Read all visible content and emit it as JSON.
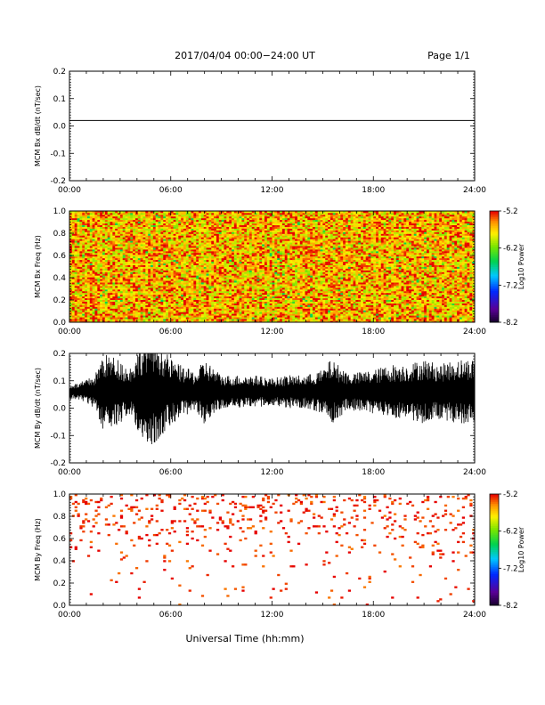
{
  "header": {
    "title": "2017/04/04  00:00−24:00 UT",
    "page": "Page 1/1"
  },
  "footer": {
    "xlabel": "Universal Time (hh:mm)"
  },
  "chart_data": [
    {
      "type": "line",
      "ylabel": "MCM Bx dB/dt (nT/sec)",
      "xlim": [
        0,
        24
      ],
      "ylim": [
        -0.2,
        0.2
      ],
      "x_ticks": [
        "00:00",
        "06:00",
        "12:00",
        "18:00",
        "24:00"
      ],
      "y_ticks": [
        "-0.2",
        "-0.1",
        "0.0",
        "0.1",
        "0.2"
      ],
      "series": [
        {
          "x": [
            0,
            24
          ],
          "y": [
            0.02,
            0.02
          ]
        }
      ]
    },
    {
      "type": "heatmap",
      "ylabel": "MCM Bx Freq (Hz)",
      "xlim": [
        0,
        24
      ],
      "ylim": [
        0,
        1
      ],
      "x_ticks": [
        "00:00",
        "06:00",
        "12:00",
        "18:00",
        "24:00"
      ],
      "y_ticks": [
        "0.0",
        "0.2",
        "0.4",
        "0.6",
        "0.8",
        "1.0"
      ],
      "colorbar": {
        "label": "Log10 Power",
        "ticks": [
          "-8.2",
          "-7.2",
          "-6.2",
          "-5.2"
        ],
        "range": [
          -8.2,
          -5.2
        ]
      },
      "fill": "dense",
      "typical_value": -5.6,
      "density": 1.0
    },
    {
      "type": "line",
      "ylabel": "MCM By dB/dt (nT/sec)",
      "xlim": [
        0,
        24
      ],
      "ylim": [
        -0.2,
        0.2
      ],
      "x_ticks": [
        "00:00",
        "06:00",
        "12:00",
        "18:00",
        "24:00"
      ],
      "y_ticks": [
        "-0.2",
        "-0.1",
        "0.0",
        "0.1",
        "0.2"
      ],
      "series": [
        {
          "baseline": 0.06,
          "envelope_x": [
            0,
            0.5,
            1.5,
            2.0,
            3.0,
            3.5,
            4.5,
            5.0,
            6.0,
            6.5,
            7.5,
            8.0,
            9.0,
            10.0,
            11.0,
            12.0,
            13.0,
            14.0,
            15.0,
            15.5,
            16.5,
            17.0,
            18.0,
            19.0,
            20.0,
            21.0,
            22.0,
            23.0,
            24.0
          ],
          "envelope_amp": [
            0.03,
            0.03,
            0.06,
            0.14,
            0.12,
            0.08,
            0.2,
            0.2,
            0.12,
            0.1,
            0.07,
            0.12,
            0.06,
            0.06,
            0.06,
            0.05,
            0.06,
            0.06,
            0.08,
            0.12,
            0.07,
            0.07,
            0.08,
            0.1,
            0.1,
            0.12,
            0.1,
            0.12,
            0.12
          ]
        }
      ]
    },
    {
      "type": "heatmap",
      "ylabel": "MCM By Freq (Hz)",
      "xlim": [
        0,
        24
      ],
      "ylim": [
        0,
        1
      ],
      "x_ticks": [
        "00:00",
        "06:00",
        "12:00",
        "18:00",
        "24:00"
      ],
      "y_ticks": [
        "0.0",
        "0.2",
        "0.4",
        "0.6",
        "0.8",
        "1.0"
      ],
      "colorbar": {
        "label": "Log10 Power",
        "ticks": [
          "-8.2",
          "-7.2",
          "-6.2",
          "-5.2"
        ],
        "range": [
          -8.2,
          -5.2
        ]
      },
      "fill": "sparse",
      "typical_value": -5.3,
      "density": 0.08
    }
  ]
}
